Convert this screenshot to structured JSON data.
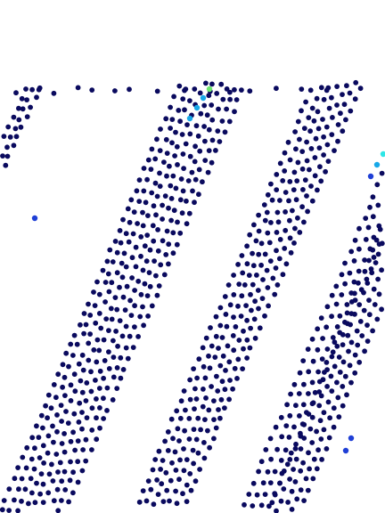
{
  "image": {
    "description_free": true,
    "background_color": "#ffffff",
    "dot_colors": {
      "base": "#0a0a5e",
      "blue": "#1f3fd6",
      "cyan": "#17a8e8",
      "light_cyan": "#2ee6e6",
      "green": "#6fe86f"
    }
  }
}
